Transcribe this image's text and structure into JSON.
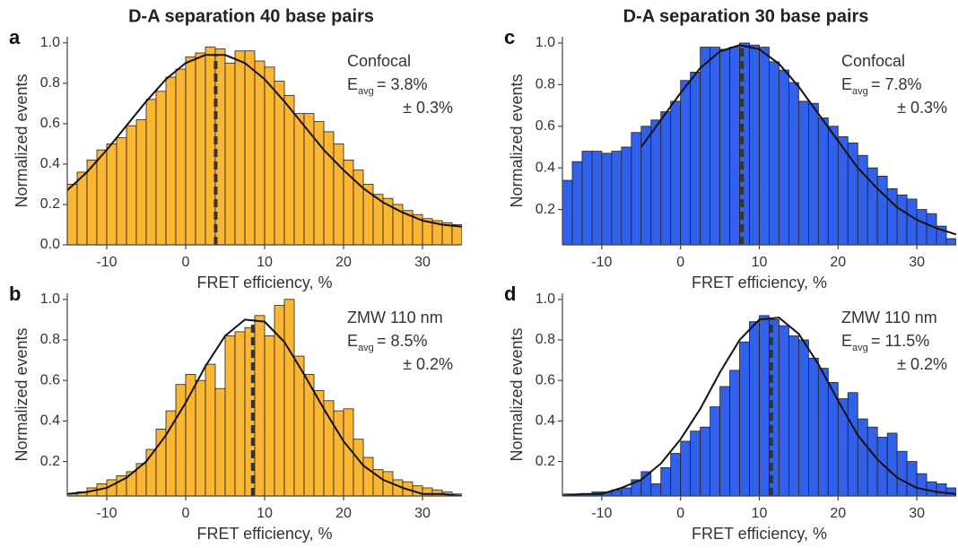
{
  "chart_data": [
    {
      "type": "histogram",
      "panel": "a",
      "title": "D-A separation 40 base pairs",
      "xlabel": "FRET efficiency, %",
      "ylabel": "Normalized events",
      "color": "#fbb634",
      "bins": [
        -15,
        -13.75,
        -12.5,
        -11.25,
        -10,
        -8.75,
        -7.5,
        -6.25,
        -5,
        -3.75,
        -2.5,
        -1.25,
        0,
        1.25,
        2.5,
        3.75,
        5,
        6.25,
        7.5,
        8.75,
        10,
        11.25,
        12.5,
        13.75,
        15,
        16.25,
        17.5,
        18.75,
        20,
        21.25,
        22.5,
        23.75,
        25,
        26.25,
        27.5,
        28.75,
        30,
        31.25,
        32.5,
        33.75,
        35
      ],
      "counts": [
        0.3,
        0.36,
        0.42,
        0.47,
        0.5,
        0.53,
        0.59,
        0.62,
        0.72,
        0.76,
        0.83,
        0.87,
        0.93,
        0.95,
        0.98,
        0.97,
        0.9,
        0.96,
        0.96,
        0.91,
        0.88,
        0.81,
        0.74,
        0.65,
        0.65,
        0.61,
        0.56,
        0.5,
        0.42,
        0.37,
        0.3,
        0.25,
        0.23,
        0.2,
        0.17,
        0.15,
        0.13,
        0.12,
        0.11,
        0.1
      ],
      "fit": {
        "x": [
          -15,
          -12.5,
          -10,
          -7.5,
          -5,
          -2.5,
          0,
          2.5,
          5,
          7.5,
          10,
          12.5,
          15,
          17.5,
          20,
          22.5,
          25,
          27.5,
          30,
          32.5,
          35
        ],
        "values": [
          0.27,
          0.36,
          0.47,
          0.59,
          0.71,
          0.82,
          0.9,
          0.94,
          0.94,
          0.9,
          0.82,
          0.71,
          0.59,
          0.47,
          0.37,
          0.28,
          0.21,
          0.16,
          0.12,
          0.1,
          0.09
        ]
      },
      "mean": 3.8,
      "annotation": {
        "method": "Confocal",
        "symbol": "E",
        "subscript": "avg",
        "value": "= 3.8%",
        "error": "± 0.3%"
      },
      "xlim": [
        -15,
        35
      ],
      "xticks": [
        -10,
        0,
        10,
        20,
        30
      ],
      "ylim": [
        0,
        1.03
      ],
      "yticks": [
        {
          "value": 0,
          "label": "0.0"
        },
        0.2,
        0.4,
        0.6,
        0.8,
        {
          "value": 1,
          "label": "1.0"
        }
      ]
    },
    {
      "type": "histogram",
      "panel": "b",
      "xlabel": "FRET efficiency, %",
      "ylabel": "Normalized events",
      "color": "#fbb634",
      "bins": [
        -15,
        -13.75,
        -12.5,
        -11.25,
        -10,
        -8.75,
        -7.5,
        -6.25,
        -5,
        -3.75,
        -2.5,
        -1.25,
        0,
        1.25,
        2.5,
        3.75,
        5,
        6.25,
        7.5,
        8.75,
        10,
        11.25,
        12.5,
        13.75,
        15,
        16.25,
        17.5,
        18.75,
        20,
        21.25,
        22.5,
        23.75,
        25,
        26.25,
        27.5,
        28.75,
        30,
        31.25,
        32.5,
        33.75,
        35
      ],
      "counts": [
        0.04,
        0.05,
        0.07,
        0.09,
        0.11,
        0.13,
        0.15,
        0.19,
        0.26,
        0.36,
        0.45,
        0.58,
        0.63,
        0.6,
        0.68,
        0.56,
        0.82,
        0.84,
        0.86,
        0.92,
        0.82,
        0.97,
        1.0,
        0.72,
        0.63,
        0.55,
        0.5,
        0.45,
        0.46,
        0.31,
        0.22,
        0.16,
        0.15,
        0.11,
        0.1,
        0.08,
        0.07,
        0.06,
        0.05,
        0.04
      ],
      "fit": {
        "x": [
          -15,
          -12.5,
          -10,
          -7.5,
          -5,
          -2.5,
          0,
          2.5,
          5,
          7.5,
          10,
          12.5,
          15,
          17.5,
          20,
          22.5,
          25,
          27.5,
          30,
          32.5,
          35
        ],
        "values": [
          0.04,
          0.05,
          0.07,
          0.12,
          0.2,
          0.33,
          0.49,
          0.67,
          0.82,
          0.9,
          0.89,
          0.79,
          0.63,
          0.46,
          0.3,
          0.18,
          0.11,
          0.07,
          0.04,
          0.04,
          0.03
        ]
      },
      "mean": 8.5,
      "annotation": {
        "method": "ZMW 110 nm",
        "symbol": "E",
        "subscript": "avg",
        "value": "= 8.5%",
        "error": "± 0.2%"
      },
      "xlim": [
        -15,
        35
      ],
      "xticks": [
        -10,
        0,
        10,
        20,
        30
      ],
      "ylim": [
        0.03,
        1.03
      ],
      "yticks": [
        0.2,
        0.4,
        0.6,
        0.8,
        {
          "value": 1,
          "label": "1.0"
        }
      ]
    },
    {
      "type": "histogram",
      "panel": "c",
      "title": "D-A separation 30 base pairs",
      "xlabel": "FRET efficiency, %",
      "ylabel": "Normalized events",
      "color": "#3160ea",
      "bins": [
        -15,
        -13.75,
        -12.5,
        -11.25,
        -10,
        -8.75,
        -7.5,
        -6.25,
        -5,
        -3.75,
        -2.5,
        -1.25,
        0,
        1.25,
        2.5,
        3.75,
        5,
        6.25,
        7.5,
        8.75,
        10,
        11.25,
        12.5,
        13.75,
        15,
        16.25,
        17.5,
        18.75,
        20,
        21.25,
        22.5,
        23.75,
        25,
        26.25,
        27.5,
        28.75,
        30,
        31.25,
        32.5,
        33.75,
        35
      ],
      "counts": [
        0.34,
        0.43,
        0.48,
        0.48,
        0.47,
        0.48,
        0.5,
        0.57,
        0.6,
        0.63,
        0.67,
        0.72,
        0.82,
        0.86,
        0.98,
        0.98,
        0.97,
        0.98,
        1.0,
        0.99,
        0.98,
        0.91,
        0.87,
        0.81,
        0.72,
        0.71,
        0.64,
        0.6,
        0.55,
        0.52,
        0.46,
        0.4,
        0.36,
        0.3,
        0.27,
        0.25,
        0.2,
        0.18,
        0.12,
        0.06
      ],
      "fit": {
        "x": [
          -5,
          -2.5,
          0,
          2.5,
          5,
          7.5,
          10,
          12.5,
          15,
          17.5,
          20,
          22.5,
          25,
          27.5,
          30,
          32.5,
          35
        ],
        "values": [
          0.5,
          0.63,
          0.76,
          0.88,
          0.96,
          0.99,
          0.97,
          0.9,
          0.79,
          0.66,
          0.53,
          0.4,
          0.3,
          0.21,
          0.15,
          0.11,
          0.08
        ]
      },
      "mean": 7.8,
      "annotation": {
        "method": "Confocal",
        "symbol": "E",
        "subscript": "avg",
        "value": "= 7.8%",
        "error": "± 0.3%"
      },
      "xlim": [
        -15,
        35
      ],
      "xticks": [
        -10,
        0,
        10,
        20,
        30
      ],
      "ylim": [
        0.03,
        1.03
      ],
      "yticks": [
        0.2,
        0.4,
        0.6,
        0.8,
        {
          "value": 1,
          "label": "1.0"
        }
      ]
    },
    {
      "type": "histogram",
      "panel": "d",
      "xlabel": "FRET efficiency, %",
      "ylabel": "Normalized events",
      "color": "#3160ea",
      "bins": [
        -15,
        -13.75,
        -12.5,
        -11.25,
        -10,
        -8.75,
        -7.5,
        -6.25,
        -5,
        -3.75,
        -2.5,
        -1.25,
        0,
        1.25,
        2.5,
        3.75,
        5,
        6.25,
        7.5,
        8.75,
        10,
        11.25,
        12.5,
        13.75,
        15,
        16.25,
        17.5,
        18.75,
        20,
        21.25,
        22.5,
        23.75,
        25,
        26.25,
        27.5,
        28.75,
        30,
        31.25,
        32.5,
        33.75,
        35
      ],
      "counts": [
        0.04,
        0.04,
        0.04,
        0.05,
        0.05,
        0.06,
        0.07,
        0.11,
        0.15,
        0.09,
        0.17,
        0.24,
        0.3,
        0.35,
        0.37,
        0.47,
        0.57,
        0.65,
        0.79,
        0.89,
        0.92,
        0.9,
        0.87,
        0.82,
        0.8,
        0.71,
        0.66,
        0.59,
        0.51,
        0.54,
        0.41,
        0.37,
        0.32,
        0.34,
        0.25,
        0.2,
        0.14,
        0.1,
        0.09,
        0.07
      ],
      "fit": {
        "x": [
          -15,
          -12.5,
          -10,
          -7.5,
          -5,
          -2.5,
          0,
          2.5,
          5,
          7.5,
          10,
          12.5,
          15,
          17.5,
          20,
          22.5,
          25,
          27.5,
          30,
          32.5,
          35
        ],
        "values": [
          0.03,
          0.04,
          0.04,
          0.07,
          0.11,
          0.19,
          0.31,
          0.46,
          0.64,
          0.8,
          0.9,
          0.91,
          0.83,
          0.68,
          0.5,
          0.33,
          0.21,
          0.12,
          0.07,
          0.05,
          0.04
        ]
      },
      "mean": 11.5,
      "annotation": {
        "method": "ZMW 110 nm",
        "symbol": "E",
        "subscript": "avg",
        "value": "= 11.5%",
        "error": "± 0.2%"
      },
      "xlim": [
        -15,
        35
      ],
      "xticks": [
        -10,
        0,
        10,
        20,
        30
      ],
      "ylim": [
        0.03,
        1.03
      ],
      "yticks": [
        0.2,
        0.4,
        0.6,
        0.8,
        {
          "value": 1,
          "label": "1.0"
        }
      ]
    }
  ]
}
